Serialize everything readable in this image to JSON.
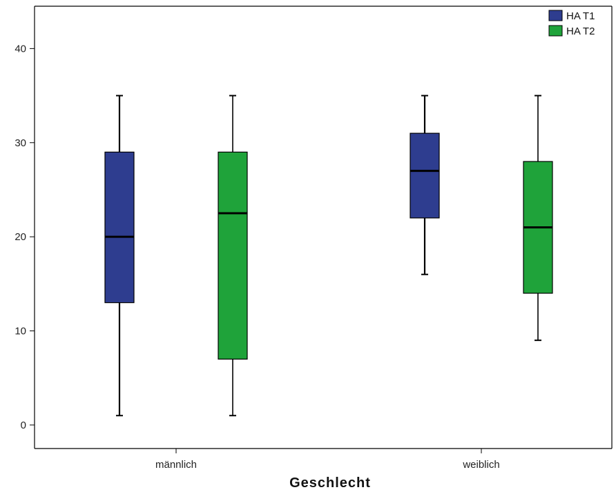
{
  "chart_data": {
    "type": "boxplot",
    "xlabel": "Geschlecht",
    "ylabel": "",
    "ylim": [
      -2.5,
      44.5
    ],
    "yticks": [
      0,
      10,
      20,
      30,
      40
    ],
    "ytick_labels": [
      "0",
      "10",
      "20",
      "30",
      "40"
    ],
    "categories": [
      "männlich",
      "weiblich"
    ],
    "grid": false,
    "legend_position": "top-right",
    "series": [
      {
        "name": "HA T1",
        "color": "#2E3D8F",
        "boxes": [
          {
            "category": "männlich",
            "whisker_low": 1,
            "q1": 13,
            "median": 20,
            "q3": 29,
            "whisker_high": 35
          },
          {
            "category": "weiblich",
            "whisker_low": 16,
            "q1": 22,
            "median": 27,
            "q3": 31,
            "whisker_high": 35
          }
        ]
      },
      {
        "name": "HA T2",
        "color": "#1FA33A",
        "boxes": [
          {
            "category": "männlich",
            "whisker_low": 1,
            "q1": 7,
            "median": 22.5,
            "q3": 29,
            "whisker_high": 35
          },
          {
            "category": "weiblich",
            "whisker_low": 9,
            "q1": 14,
            "median": 21,
            "q3": 28,
            "whisker_high": 35
          }
        ]
      }
    ]
  }
}
